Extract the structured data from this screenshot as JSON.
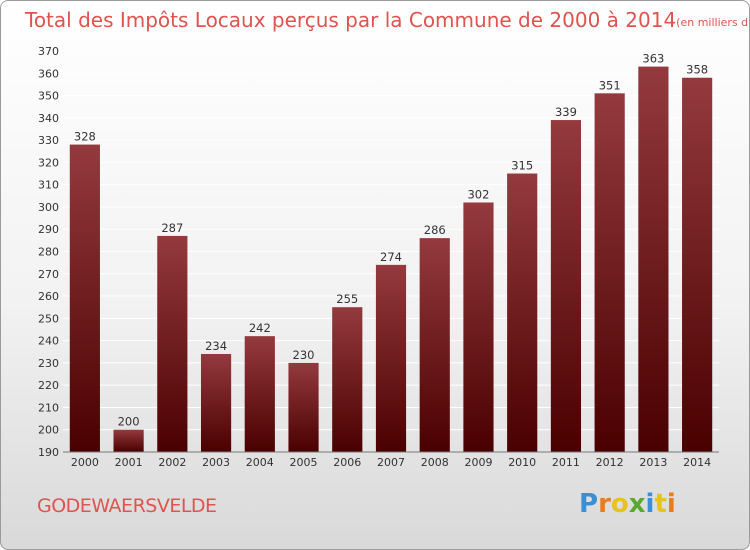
{
  "chart_data": {
    "type": "bar",
    "title": "Total des Impôts Locaux perçus par la Commune de 2000 à 2014",
    "subtitle": "(en milliers d'€)",
    "categories": [
      "2000",
      "2001",
      "2002",
      "2003",
      "2004",
      "2005",
      "2006",
      "2007",
      "2008",
      "2009",
      "2010",
      "2011",
      "2012",
      "2013",
      "2014"
    ],
    "values": [
      328,
      200,
      287,
      234,
      242,
      230,
      255,
      274,
      286,
      302,
      315,
      339,
      351,
      363,
      358
    ],
    "ylim": [
      190,
      370
    ],
    "ytick_step": 10,
    "xlabel": "",
    "ylabel": "",
    "grid": true
  },
  "footer": {
    "commune": "GODEWAERSVELDE",
    "brand_letters": [
      "P",
      "r",
      "o",
      "x",
      "i",
      "t",
      "i"
    ],
    "brand_colors": [
      "#3a8fd6",
      "#e87d1e",
      "#e8c21e",
      "#5aa82e",
      "#3a8fd6",
      "#e8c21e",
      "#e87d1e"
    ]
  },
  "colors": {
    "bar_top": "#943a3e",
    "bar_bottom": "#4a0000",
    "title": "#e0534e",
    "grid": "#ffffff"
  }
}
